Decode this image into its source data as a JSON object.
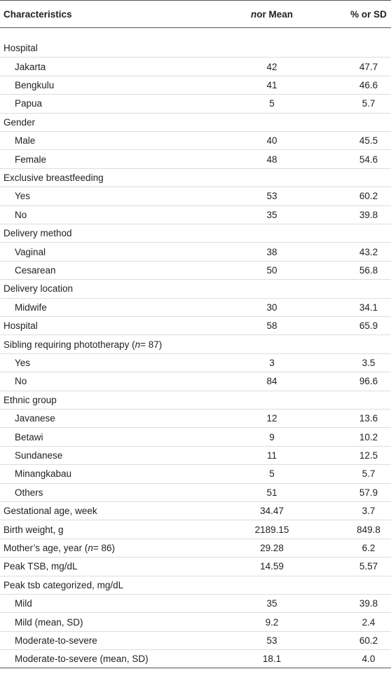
{
  "table": {
    "header": [
      [
        {
          "text": "Characteristics"
        }
      ],
      [
        {
          "text": "n",
          "italic": true
        },
        {
          "text": " or Mean"
        }
      ],
      [
        {
          "text": "% or SD"
        }
      ]
    ],
    "rows": [
      {
        "label": [
          {
            "text": "Hospital"
          }
        ],
        "indent": false
      },
      {
        "label": [
          {
            "text": "Jakarta"
          }
        ],
        "indent": true,
        "n": "42",
        "pct": "47.7"
      },
      {
        "label": [
          {
            "text": "Bengkulu"
          }
        ],
        "indent": true,
        "n": "41",
        "pct": "46.6"
      },
      {
        "label": [
          {
            "text": "Papua"
          }
        ],
        "indent": true,
        "n": "5",
        "pct": "5.7"
      },
      {
        "label": [
          {
            "text": "Gender"
          }
        ],
        "indent": false
      },
      {
        "label": [
          {
            "text": "Male"
          }
        ],
        "indent": true,
        "n": "40",
        "pct": "45.5"
      },
      {
        "label": [
          {
            "text": "Female"
          }
        ],
        "indent": true,
        "n": "48",
        "pct": "54.6"
      },
      {
        "label": [
          {
            "text": "Exclusive breastfeeding"
          }
        ],
        "indent": false
      },
      {
        "label": [
          {
            "text": "Yes"
          }
        ],
        "indent": true,
        "n": "53",
        "pct": "60.2"
      },
      {
        "label": [
          {
            "text": "No"
          }
        ],
        "indent": true,
        "n": "35",
        "pct": "39.8"
      },
      {
        "label": [
          {
            "text": "Delivery method"
          }
        ],
        "indent": false
      },
      {
        "label": [
          {
            "text": "Vaginal"
          }
        ],
        "indent": true,
        "n": "38",
        "pct": "43.2"
      },
      {
        "label": [
          {
            "text": "Cesarean"
          }
        ],
        "indent": true,
        "n": "50",
        "pct": "56.8"
      },
      {
        "label": [
          {
            "text": "Delivery location"
          }
        ],
        "indent": false
      },
      {
        "label": [
          {
            "text": "Midwife"
          }
        ],
        "indent": true,
        "n": "30",
        "pct": "34.1"
      },
      {
        "label": [
          {
            "text": "Hospital"
          }
        ],
        "indent": false,
        "n": "58",
        "pct": "65.9"
      },
      {
        "label": [
          {
            "text": "Sibling requiring phototherapy ("
          },
          {
            "text": "n",
            "italic": true
          },
          {
            "text": " = 87)"
          }
        ],
        "indent": false
      },
      {
        "label": [
          {
            "text": "Yes"
          }
        ],
        "indent": true,
        "n": "3",
        "pct": "3.5"
      },
      {
        "label": [
          {
            "text": "No"
          }
        ],
        "indent": true,
        "n": "84",
        "pct": "96.6"
      },
      {
        "label": [
          {
            "text": "Ethnic group"
          }
        ],
        "indent": false
      },
      {
        "label": [
          {
            "text": "Javanese"
          }
        ],
        "indent": true,
        "n": "12",
        "pct": "13.6"
      },
      {
        "label": [
          {
            "text": "Betawi"
          }
        ],
        "indent": true,
        "n": "9",
        "pct": "10.2"
      },
      {
        "label": [
          {
            "text": "Sundanese"
          }
        ],
        "indent": true,
        "n": "11",
        "pct": "12.5"
      },
      {
        "label": [
          {
            "text": "Minangkabau"
          }
        ],
        "indent": true,
        "n": "5",
        "pct": "5.7"
      },
      {
        "label": [
          {
            "text": "Others"
          }
        ],
        "indent": true,
        "n": "51",
        "pct": "57.9"
      },
      {
        "label": [
          {
            "text": "Gestational age, week"
          }
        ],
        "indent": false,
        "n": "34.47",
        "pct": "3.7"
      },
      {
        "label": [
          {
            "text": "Birth weight, g"
          }
        ],
        "indent": false,
        "n": "2189.15",
        "pct": "849.8"
      },
      {
        "label": [
          {
            "text": "Mother’s age, year ("
          },
          {
            "text": "n",
            "italic": true
          },
          {
            "text": " = 86)"
          }
        ],
        "indent": false,
        "n": "29.28",
        "pct": "6.2"
      },
      {
        "label": [
          {
            "text": "Peak TSB, mg/dL"
          }
        ],
        "indent": false,
        "n": "14.59",
        "pct": "5.57"
      },
      {
        "label": [
          {
            "text": "Peak tsb categorized, mg/dL"
          }
        ],
        "indent": false
      },
      {
        "label": [
          {
            "text": "Mild"
          }
        ],
        "indent": true,
        "n": "35",
        "pct": "39.8"
      },
      {
        "label": [
          {
            "text": "Mild (mean, SD)"
          }
        ],
        "indent": true,
        "n": "9.2",
        "pct": "2.4"
      },
      {
        "label": [
          {
            "text": "Moderate-to-severe"
          }
        ],
        "indent": true,
        "n": "53",
        "pct": "60.2"
      },
      {
        "label": [
          {
            "text": "Moderate-to-severe (mean, SD)"
          }
        ],
        "indent": true,
        "n": "18.1",
        "pct": "4.0"
      }
    ]
  }
}
